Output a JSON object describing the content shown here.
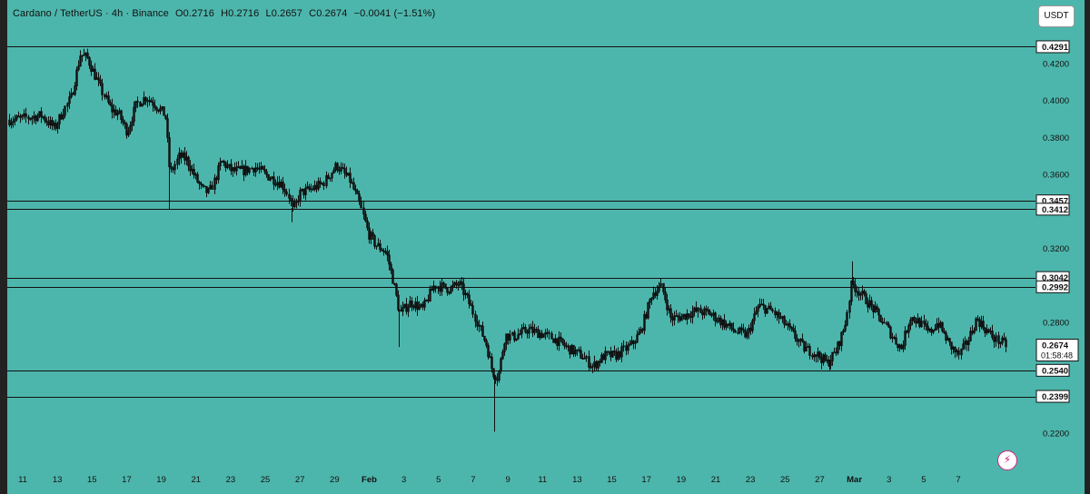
{
  "header": {
    "symbol": "Cardano / TetherUS · 4h · Binance",
    "open": "O0.2716",
    "high": "H0.2716",
    "low": "L0.2657",
    "close": "C0.2674",
    "change": "−0.0041 (−1.51%)"
  },
  "currency_button": "USDT",
  "countdown": "01:58:48",
  "colors": {
    "background": "#4db6ac",
    "candles": "#111111",
    "lines": "#111111",
    "label_bg": "#ffffff"
  },
  "icons": {
    "bolt": "lightning-bolt-icon"
  },
  "chart_data": {
    "type": "candlestick",
    "ylim": [
      0.1925,
      0.4375
    ],
    "y_ticks": [
      "0.4200",
      "0.4000",
      "0.3800",
      "0.3600",
      "0.3200",
      "0.2800",
      "0.2200"
    ],
    "x_ticks": [
      "11",
      "13",
      "15",
      "17",
      "19",
      "21",
      "23",
      "25",
      "27",
      "29",
      "Feb",
      "3",
      "5",
      "7",
      "9",
      "11",
      "13",
      "15",
      "17",
      "19",
      "21",
      "23",
      "25",
      "27",
      "Mar",
      "3",
      "5",
      "7"
    ],
    "horizontal_levels": [
      "0.4291",
      "0.3457",
      "0.3412",
      "0.3042",
      "0.2992",
      "0.2540",
      "0.2399"
    ],
    "last_price": "0.2674",
    "price_path": [
      [
        0,
        0.389
      ],
      [
        20,
        0.39
      ],
      [
        45,
        0.392
      ],
      [
        60,
        0.385
      ],
      [
        68,
        0.393
      ],
      [
        78,
        0.402
      ],
      [
        88,
        0.425
      ],
      [
        96,
        0.423
      ],
      [
        103,
        0.415
      ],
      [
        112,
        0.405
      ],
      [
        122,
        0.395
      ],
      [
        130,
        0.393
      ],
      [
        140,
        0.383
      ],
      [
        150,
        0.398
      ],
      [
        160,
        0.402
      ],
      [
        170,
        0.398
      ],
      [
        182,
        0.392
      ],
      [
        187,
        0.36
      ],
      [
        197,
        0.37
      ],
      [
        205,
        0.368
      ],
      [
        215,
        0.358
      ],
      [
        222,
        0.352
      ],
      [
        230,
        0.35
      ],
      [
        236,
        0.357
      ],
      [
        243,
        0.367
      ],
      [
        255,
        0.362
      ],
      [
        268,
        0.362
      ],
      [
        280,
        0.364
      ],
      [
        295,
        0.359
      ],
      [
        310,
        0.355
      ],
      [
        318,
        0.348
      ],
      [
        322,
        0.34
      ],
      [
        330,
        0.35
      ],
      [
        342,
        0.352
      ],
      [
        355,
        0.355
      ],
      [
        370,
        0.365
      ],
      [
        385,
        0.357
      ],
      [
        395,
        0.345
      ],
      [
        405,
        0.328
      ],
      [
        413,
        0.322
      ],
      [
        425,
        0.318
      ],
      [
        433,
        0.302
      ],
      [
        440,
        0.285
      ],
      [
        452,
        0.291
      ],
      [
        465,
        0.287
      ],
      [
        478,
        0.3
      ],
      [
        495,
        0.298
      ],
      [
        505,
        0.301
      ],
      [
        515,
        0.292
      ],
      [
        525,
        0.28
      ],
      [
        535,
        0.268
      ],
      [
        542,
        0.253
      ],
      [
        548,
        0.25
      ],
      [
        556,
        0.273
      ],
      [
        565,
        0.272
      ],
      [
        580,
        0.276
      ],
      [
        595,
        0.274
      ],
      [
        610,
        0.271
      ],
      [
        625,
        0.266
      ],
      [
        640,
        0.262
      ],
      [
        652,
        0.256
      ],
      [
        665,
        0.262
      ],
      [
        678,
        0.262
      ],
      [
        695,
        0.268
      ],
      [
        705,
        0.275
      ],
      [
        718,
        0.296
      ],
      [
        728,
        0.299
      ],
      [
        738,
        0.282
      ],
      [
        750,
        0.283
      ],
      [
        765,
        0.286
      ],
      [
        780,
        0.285
      ],
      [
        795,
        0.28
      ],
      [
        810,
        0.275
      ],
      [
        822,
        0.273
      ],
      [
        835,
        0.289
      ],
      [
        850,
        0.286
      ],
      [
        862,
        0.28
      ],
      [
        872,
        0.274
      ],
      [
        885,
        0.266
      ],
      [
        898,
        0.263
      ],
      [
        910,
        0.258
      ],
      [
        920,
        0.264
      ],
      [
        930,
        0.278
      ],
      [
        937,
        0.301
      ],
      [
        948,
        0.295
      ],
      [
        960,
        0.288
      ],
      [
        972,
        0.28
      ],
      [
        985,
        0.27
      ],
      [
        992,
        0.266
      ],
      [
        1002,
        0.283
      ],
      [
        1012,
        0.28
      ],
      [
        1022,
        0.274
      ],
      [
        1032,
        0.28
      ],
      [
        1045,
        0.268
      ],
      [
        1055,
        0.262
      ],
      [
        1065,
        0.27
      ],
      [
        1075,
        0.282
      ],
      [
        1085,
        0.276
      ],
      [
        1095,
        0.271
      ],
      [
        1108,
        0.2674
      ]
    ],
    "spike_wicks": [
      [
        186,
        0.341
      ],
      [
        321,
        0.3342
      ],
      [
        439,
        0.2666
      ],
      [
        544,
        0.2208
      ],
      [
        938,
        0.313
      ],
      [
        913,
        0.2541
      ],
      [
        656,
        0.2545
      ]
    ]
  }
}
